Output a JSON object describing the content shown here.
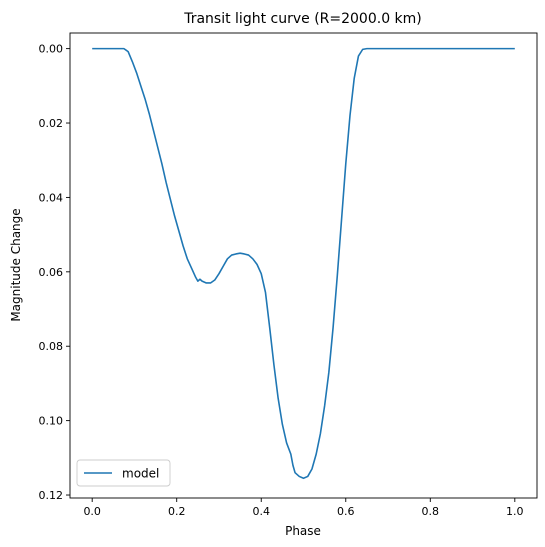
{
  "chart_data": {
    "type": "line",
    "title": "Transit light curve (R=2000.0 km)",
    "xlabel": "Phase",
    "ylabel": "Magnitude Change",
    "xlim": [
      -0.0525,
      1.0525
    ],
    "ylim": [
      0.1208,
      -0.0042
    ],
    "y_inverted": true,
    "xticks": [
      0.0,
      0.2,
      0.4,
      0.6,
      0.8,
      1.0
    ],
    "xtick_labels": [
      "0.0",
      "0.2",
      "0.4",
      "0.6",
      "0.8",
      "1.0"
    ],
    "yticks": [
      0.0,
      0.02,
      0.04,
      0.06,
      0.08,
      0.1,
      0.12
    ],
    "ytick_labels": [
      "0.00",
      "0.02",
      "0.04",
      "0.06",
      "0.08",
      "0.10",
      "0.12"
    ],
    "grid": false,
    "legend_position": "lower-left",
    "series": [
      {
        "name": "model",
        "color": "#1f77b4",
        "x": [
          0.0,
          0.02,
          0.04,
          0.06,
          0.075,
          0.085,
          0.095,
          0.105,
          0.115,
          0.125,
          0.135,
          0.145,
          0.155,
          0.165,
          0.175,
          0.185,
          0.195,
          0.205,
          0.215,
          0.225,
          0.235,
          0.245,
          0.25,
          0.255,
          0.26,
          0.27,
          0.28,
          0.29,
          0.3,
          0.31,
          0.32,
          0.33,
          0.34,
          0.35,
          0.36,
          0.37,
          0.38,
          0.39,
          0.4,
          0.41,
          0.42,
          0.43,
          0.44,
          0.45,
          0.46,
          0.47,
          0.475,
          0.48,
          0.49,
          0.5,
          0.51,
          0.52,
          0.53,
          0.54,
          0.55,
          0.56,
          0.57,
          0.58,
          0.59,
          0.6,
          0.61,
          0.62,
          0.63,
          0.64,
          0.65,
          0.66,
          0.7,
          0.8,
          0.9,
          1.0
        ],
        "y": [
          0.0,
          0.0,
          0.0,
          0.0,
          0.0,
          0.0008,
          0.0035,
          0.0065,
          0.01,
          0.0135,
          0.0175,
          0.022,
          0.0265,
          0.031,
          0.036,
          0.0405,
          0.045,
          0.049,
          0.053,
          0.0565,
          0.059,
          0.0615,
          0.0625,
          0.062,
          0.0625,
          0.063,
          0.063,
          0.0622,
          0.0605,
          0.0585,
          0.0565,
          0.0555,
          0.0552,
          0.055,
          0.0552,
          0.0555,
          0.0565,
          0.058,
          0.0605,
          0.0655,
          0.075,
          0.085,
          0.094,
          0.101,
          0.106,
          0.109,
          0.112,
          0.114,
          0.115,
          0.1155,
          0.115,
          0.113,
          0.109,
          0.1035,
          0.096,
          0.087,
          0.075,
          0.061,
          0.046,
          0.031,
          0.018,
          0.008,
          0.002,
          0.0002,
          0.0,
          0.0,
          0.0,
          0.0,
          0.0,
          0.0
        ]
      }
    ]
  }
}
